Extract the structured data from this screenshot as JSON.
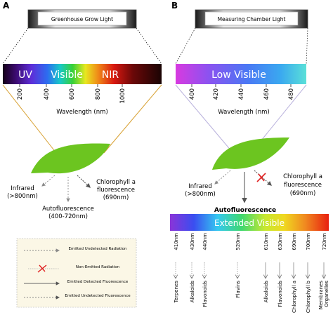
{
  "panel_a": {
    "letter": "A",
    "light_label": "Greenhouse Grow Light",
    "bands": {
      "uv": "UV",
      "visible": "Visible",
      "nir": "NIR"
    },
    "ticks": [
      "200",
      "400",
      "600",
      "800",
      "1000"
    ],
    "axis_label": "Wavelength (nm)",
    "outputs": {
      "infrared": [
        "Infrared",
        "(>800nm)"
      ],
      "autofluorescence": [
        "Autofluorescence",
        "(400-720nm)"
      ],
      "chlorophyll": [
        "Chlorophyll a",
        "fluorescence",
        "(690nm)"
      ]
    },
    "legend": [
      "Emitted Undetected Radiation",
      "Non-Emitted Radiation",
      "Emitted Detected Fluorescence",
      "Emitted Undetected Fluorescence"
    ]
  },
  "panel_b": {
    "letter": "B",
    "light_label": "Measuring Chamber Light",
    "band": "Low Visible",
    "ticks": [
      "400",
      "420",
      "440",
      "460",
      "480"
    ],
    "axis_label": "Wavelength (nm)",
    "outputs": {
      "infrared": [
        "Infrared",
        "(>800nm)"
      ],
      "chlorophyll": [
        "Chlorophyll a",
        "fluorescence",
        "(690nm)"
      ]
    },
    "auto_title": "Autofluorescence",
    "ext_band": "Extended Visible",
    "compounds": [
      {
        "nm": "410nm",
        "name": "Terpenes"
      },
      {
        "nm": "430nm",
        "name": "Alkaloids"
      },
      {
        "nm": "440nm",
        "name": "Flavonoids"
      },
      {
        "nm": "520nm",
        "name": "Flavins"
      },
      {
        "nm": "610nm",
        "name": "Alkaloids"
      },
      {
        "nm": "630nm",
        "name": "Flavonoids"
      },
      {
        "nm": "690nm",
        "name": "Chlorophyll a"
      },
      {
        "nm": "700nm",
        "name": "Chlorophyll b"
      },
      {
        "nm": "720nm",
        "name": "Membranes Organelles"
      }
    ]
  }
}
